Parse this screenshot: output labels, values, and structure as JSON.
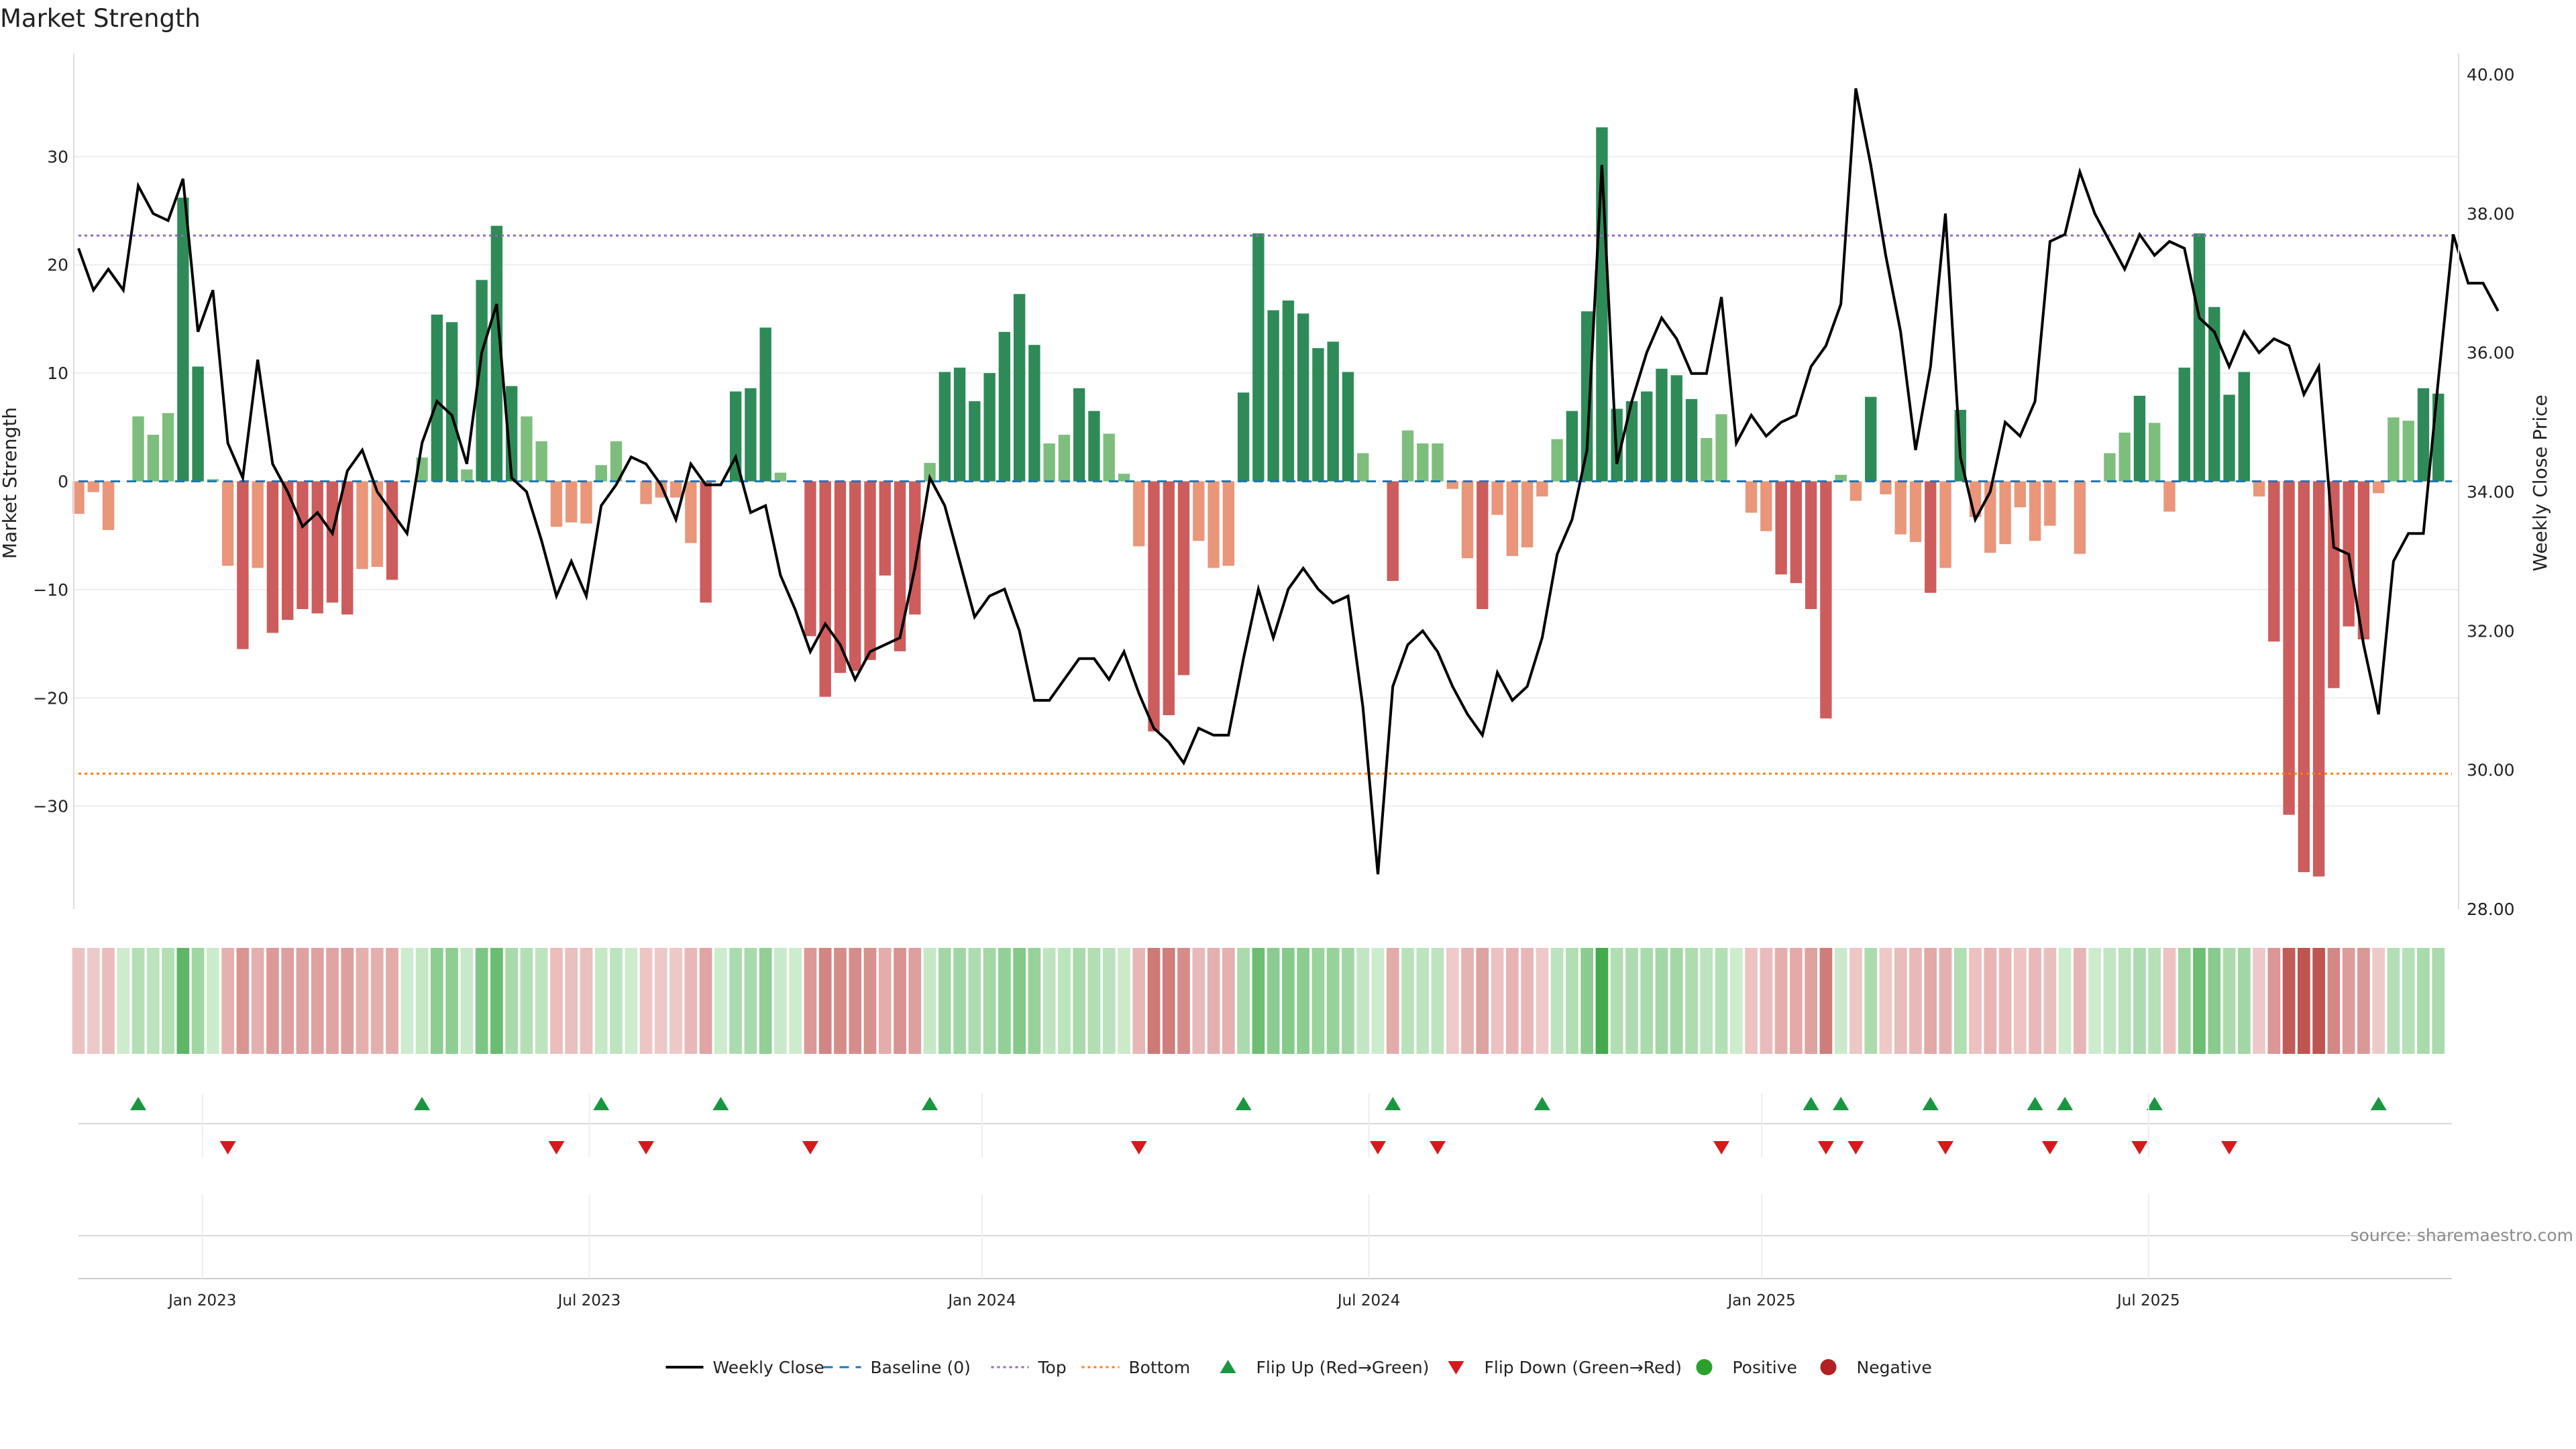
{
  "chart_data": {
    "type": "bar",
    "title": "Market Strength",
    "ylabel_left": "Market Strength",
    "ylabel_right": "Weekly Close Price",
    "source": "source: sharemaestro.com",
    "ylim_left": [
      -39.5,
      39.5
    ],
    "ylim_right": [
      28,
      40.3
    ],
    "yticks_left": [
      {
        "v": 30,
        "label": "30"
      },
      {
        "v": 20,
        "label": "20"
      },
      {
        "v": 10,
        "label": "10"
      },
      {
        "v": 0,
        "label": "0"
      },
      {
        "v": -10,
        "label": "−10"
      },
      {
        "v": -20,
        "label": "−20"
      },
      {
        "v": -30,
        "label": "−30"
      }
    ],
    "yticks_right": [
      {
        "v": 40,
        "label": "40.00"
      },
      {
        "v": 38,
        "label": "38.00"
      },
      {
        "v": 36,
        "label": "36.00"
      },
      {
        "v": 34,
        "label": "34.00"
      },
      {
        "v": 32,
        "label": "32.00"
      },
      {
        "v": 30,
        "label": "30.00"
      },
      {
        "v": 28,
        "label": "28.00"
      }
    ],
    "xticks": [
      {
        "week": 8.3,
        "label": "Jan 2023"
      },
      {
        "week": 34.2,
        "label": "Jul 2023"
      },
      {
        "week": 60.5,
        "label": "Jan 2024"
      },
      {
        "week": 86.4,
        "label": "Jul 2024"
      },
      {
        "week": 112.7,
        "label": "Jan 2025"
      },
      {
        "week": 138.6,
        "label": "Jul 2025"
      }
    ],
    "top_line": 22.7,
    "bottom_line": -27,
    "strength": [
      -3,
      -1,
      -4.5,
      0,
      6,
      4.3,
      6.3,
      26.2,
      10.6,
      0.2,
      -7.8,
      -15.5,
      -8,
      -14,
      -12.8,
      -11.8,
      -12.2,
      -11.2,
      -12.3,
      -8.1,
      -7.9,
      -9.1,
      0,
      2.2,
      15.4,
      14.7,
      1.1,
      18.6,
      23.6,
      8.8,
      6,
      3.7,
      -4.2,
      -3.8,
      -3.9,
      1.5,
      3.7,
      0,
      -2.1,
      -1.5,
      -1.5,
      -5.7,
      -11.2,
      0,
      8.3,
      8.6,
      14.2,
      0.8,
      0,
      -14.3,
      -19.9,
      -17.7,
      -17.5,
      -16.5,
      -8.7,
      -15.7,
      -12.3,
      1.7,
      10.1,
      10.5,
      7.4,
      10,
      13.8,
      17.3,
      12.6,
      3.5,
      4.3,
      8.6,
      6.5,
      4.4,
      0.7,
      -6,
      -23.1,
      -21.6,
      -17.9,
      -5.5,
      -8,
      -7.8,
      8.2,
      22.9,
      15.8,
      16.7,
      15.5,
      12.3,
      12.9,
      10.1,
      2.6,
      0,
      -9.2,
      4.7,
      3.5,
      3.5,
      -0.7,
      -7.1,
      -11.8,
      -3.1,
      -6.9,
      -6.1,
      -1.4,
      3.9,
      6.5,
      15.7,
      32.7,
      6.7,
      7.4,
      8.3,
      10.4,
      9.8,
      7.6,
      4,
      6.2,
      0,
      -2.9,
      -4.6,
      -8.6,
      -9.4,
      -11.8,
      -21.9,
      0.6,
      -1.8,
      7.8,
      -1.2,
      -4.9,
      -5.6,
      -10.3,
      -8,
      6.6,
      -3.3,
      -6.6,
      -5.8,
      -2.4,
      -5.5,
      -4.1,
      0,
      -6.7,
      0,
      2.6,
      4.5,
      7.9,
      5.4,
      -2.8,
      10.5,
      22.9,
      16.1,
      8,
      10.1,
      -1.4,
      -14.8,
      -30.8,
      -36.1,
      -36.5,
      -19.1,
      -13.4,
      -14.6,
      -1.1,
      5.9,
      5.6,
      8.6,
      8.1
    ],
    "close": [
      37.5,
      36.9,
      37.2,
      36.9,
      38.4,
      38,
      37.9,
      38.5,
      36.3,
      36.9,
      34.7,
      34.2,
      35.9,
      34.4,
      34,
      33.5,
      33.7,
      33.4,
      34.3,
      34.6,
      34,
      33.7,
      33.4,
      34.7,
      35.3,
      35.1,
      34.4,
      36,
      36.7,
      34.2,
      34,
      33.3,
      32.5,
      33,
      32.5,
      33.8,
      34.1,
      34.5,
      34.4,
      34.1,
      33.6,
      34.4,
      34.1,
      34.1,
      34.5,
      33.7,
      33.8,
      32.8,
      32.3,
      31.7,
      32.1,
      31.8,
      31.3,
      31.7,
      31.8,
      31.9,
      32.9,
      34.2,
      33.8,
      33,
      32.2,
      32.5,
      32.6,
      32,
      31,
      31,
      31.3,
      31.6,
      31.6,
      31.3,
      31.7,
      31.1,
      30.6,
      30.4,
      30.1,
      30.6,
      30.5,
      30.5,
      31.6,
      32.6,
      31.9,
      32.6,
      32.9,
      32.6,
      32.4,
      32.5,
      30.9,
      28.5,
      31.2,
      31.8,
      32,
      31.7,
      31.2,
      30.8,
      30.5,
      31.4,
      31,
      31.2,
      31.9,
      33.1,
      33.6,
      34.6,
      38.7,
      34.4,
      35.3,
      36,
      36.5,
      36.2,
      35.7,
      35.7,
      36.8,
      34.7,
      35.1,
      34.8,
      35,
      35.1,
      35.8,
      36.1,
      36.7,
      39.8,
      38.7,
      37.4,
      36.3,
      34.6,
      35.8,
      38.0,
      34.5,
      33.6,
      34.0,
      35.0,
      34.8,
      35.3,
      37.6,
      37.7,
      38.6,
      38.0,
      37.6,
      37.2,
      37.7,
      37.4,
      37.6,
      37.5,
      36.5,
      36.3,
      35.8,
      36.3,
      36.0,
      36.2,
      36.1,
      35.4,
      35.8,
      33.2,
      33.1,
      31.8,
      30.8,
      33.0,
      33.4,
      33.4,
      35.6,
      37.7,
      37.0,
      37.0,
      36.6
    ],
    "flip_up_weeks": [
      4,
      23,
      35,
      43,
      57,
      78,
      88,
      98,
      116,
      118,
      124,
      131,
      133,
      139,
      154
    ],
    "flip_down_weeks": [
      10,
      32,
      38,
      49,
      71,
      87,
      91,
      110,
      117,
      119,
      125,
      132,
      138,
      144
    ],
    "colors": {
      "strong_green": "#2e8b57",
      "light_green": "#7dbe7d",
      "strong_red": "#cd5c5c",
      "light_red": "#e9967a",
      "price_line": "#000000",
      "baseline": "#1f77b4",
      "top": "#9467bd",
      "bottom": "#ff7f0e",
      "flip_up": "#1a9641",
      "flip_down": "#d7191c",
      "positive": "#2ca02c",
      "negative": "#b22222"
    },
    "legend": [
      {
        "key": "line",
        "label": "Weekly Close"
      },
      {
        "key": "baseline",
        "label": "Baseline (0)"
      },
      {
        "key": "top",
        "label": "Top"
      },
      {
        "key": "bottom",
        "label": "Bottom"
      },
      {
        "key": "flipup",
        "label": "Flip Up (Red→Green)"
      },
      {
        "key": "flipdown",
        "label": "Flip Down (Green→Red)"
      },
      {
        "key": "positive",
        "label": "Positive"
      },
      {
        "key": "negative",
        "label": "Negative"
      }
    ]
  }
}
